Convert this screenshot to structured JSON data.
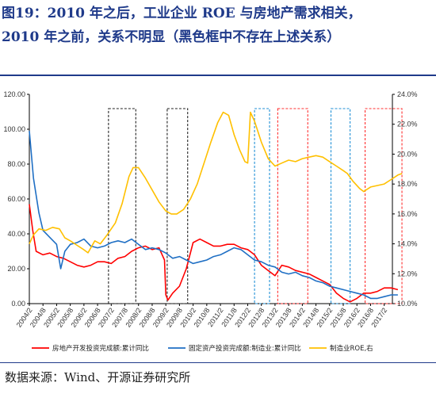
{
  "title": {
    "line1": "图19：2010 年之后，工业企业 ROE 与房地产需求相关，",
    "line2": "2010 年之前，关系不明显（黑色框中不存在上述关系）"
  },
  "source": "数据来源：Wind、开源证券研究所",
  "colors": {
    "title": "#1f3a8a",
    "red": "#ff0000",
    "blue": "#1f6fc4",
    "yellow": "#ffc000"
  },
  "chart_data": {
    "type": "line",
    "x_tick_labels": [
      "2004/2",
      "2004/8",
      "2005/2",
      "2005/8",
      "2006/2",
      "2006/8",
      "2007/2",
      "2007/8",
      "2008/2",
      "2008/8",
      "2009/2",
      "2009/8",
      "2010/2",
      "2010/8",
      "2011/2",
      "2011/8",
      "2012/2",
      "2012/8",
      "2013/2",
      "2013/8",
      "2014/2",
      "2014/8",
      "2015/2",
      "2015/8",
      "2016/2",
      "2016/8",
      "2017/2"
    ],
    "y_left": {
      "min": 0,
      "max": 120,
      "ticks": [
        "0.00",
        "20.00",
        "40.00",
        "60.00",
        "80.00",
        "100.00",
        "120.00"
      ]
    },
    "y_right": {
      "min": 10.0,
      "max": 24.0,
      "ticks": [
        "10.0%",
        "12.0%",
        "14.0%",
        "16.0%",
        "18.0%",
        "20.0%",
        "22.0%",
        "24.0%"
      ]
    },
    "series": [
      {
        "name": "房地产开发投资完成额:累计同比",
        "color": "#ff0000",
        "axis": "left",
        "points": [
          [
            0,
            57
          ],
          [
            0.25,
            42
          ],
          [
            0.5,
            30
          ],
          [
            1,
            28
          ],
          [
            1.5,
            29
          ],
          [
            2,
            27
          ],
          [
            2.5,
            26
          ],
          [
            3,
            24
          ],
          [
            3.5,
            22
          ],
          [
            4,
            21
          ],
          [
            4.5,
            22
          ],
          [
            5,
            24
          ],
          [
            5.5,
            24
          ],
          [
            6,
            23
          ],
          [
            6.5,
            26
          ],
          [
            7,
            27
          ],
          [
            7.5,
            30
          ],
          [
            8,
            32
          ],
          [
            8.5,
            33
          ],
          [
            9,
            31
          ],
          [
            9.5,
            32
          ],
          [
            9.9,
            25
          ],
          [
            10,
            5
          ],
          [
            10.15,
            2
          ],
          [
            10.5,
            6
          ],
          [
            11,
            10
          ],
          [
            11.5,
            20
          ],
          [
            12,
            35
          ],
          [
            12.5,
            37
          ],
          [
            13,
            35
          ],
          [
            13.5,
            33
          ],
          [
            14,
            33
          ],
          [
            14.5,
            34
          ],
          [
            15,
            34
          ],
          [
            15.5,
            32
          ],
          [
            16,
            31
          ],
          [
            16.5,
            28
          ],
          [
            17,
            22
          ],
          [
            17.5,
            19
          ],
          [
            18,
            16
          ],
          [
            18.5,
            22
          ],
          [
            19,
            21
          ],
          [
            19.5,
            19
          ],
          [
            20,
            18
          ],
          [
            20.5,
            17
          ],
          [
            21,
            15
          ],
          [
            21.5,
            13
          ],
          [
            22,
            11
          ],
          [
            22.5,
            6
          ],
          [
            23,
            3
          ],
          [
            23.5,
            1
          ],
          [
            24,
            3
          ],
          [
            24.5,
            6
          ],
          [
            25,
            6
          ],
          [
            25.5,
            7
          ],
          [
            26,
            9
          ],
          [
            26.5,
            9
          ],
          [
            27,
            8
          ]
        ]
      },
      {
        "name": "固定资产投资完成额:制造业:累计同比",
        "color": "#1f6fc4",
        "axis": "left",
        "points": [
          [
            0,
            99
          ],
          [
            0.3,
            72
          ],
          [
            0.7,
            52
          ],
          [
            1,
            42
          ],
          [
            1.5,
            38
          ],
          [
            2,
            34
          ],
          [
            2.3,
            20
          ],
          [
            2.6,
            30
          ],
          [
            3,
            34
          ],
          [
            3.5,
            35
          ],
          [
            4,
            37
          ],
          [
            4.5,
            33
          ],
          [
            5,
            32
          ],
          [
            5.5,
            33
          ],
          [
            6,
            35
          ],
          [
            6.5,
            36
          ],
          [
            7,
            35
          ],
          [
            7.5,
            37
          ],
          [
            8,
            34
          ],
          [
            8.5,
            31
          ],
          [
            9,
            32
          ],
          [
            9.5,
            31
          ],
          [
            10,
            29
          ],
          [
            10.5,
            26
          ],
          [
            11,
            27
          ],
          [
            11.5,
            25
          ],
          [
            12,
            23
          ],
          [
            12.5,
            24
          ],
          [
            13,
            25
          ],
          [
            13.5,
            27
          ],
          [
            14,
            28
          ],
          [
            14.5,
            30
          ],
          [
            15,
            32
          ],
          [
            15.5,
            31
          ],
          [
            16,
            28
          ],
          [
            16.5,
            25
          ],
          [
            17,
            24
          ],
          [
            17.5,
            22
          ],
          [
            18,
            21
          ],
          [
            18.5,
            18
          ],
          [
            19,
            17
          ],
          [
            19.5,
            18
          ],
          [
            20,
            16
          ],
          [
            20.5,
            15
          ],
          [
            21,
            13
          ],
          [
            21.5,
            12
          ],
          [
            22,
            10
          ],
          [
            22.5,
            9
          ],
          [
            23,
            8
          ],
          [
            23.5,
            7
          ],
          [
            24,
            6
          ],
          [
            24.5,
            5
          ],
          [
            25,
            3
          ],
          [
            25.5,
            3
          ],
          [
            26,
            4
          ],
          [
            26.5,
            5
          ],
          [
            27,
            5
          ]
        ]
      },
      {
        "name": "制造业ROE,右",
        "color": "#ffc000",
        "axis": "right",
        "points": [
          [
            0,
            14.0
          ],
          [
            0.3,
            14.6
          ],
          [
            0.7,
            15.0
          ],
          [
            1.2,
            14.9
          ],
          [
            1.7,
            15.1
          ],
          [
            2.2,
            15.0
          ],
          [
            2.6,
            14.4
          ],
          [
            3,
            14.2
          ],
          [
            3.5,
            13.9
          ],
          [
            4,
            13.6
          ],
          [
            4.3,
            13.4
          ],
          [
            4.8,
            14.2
          ],
          [
            5.2,
            14.0
          ],
          [
            5.7,
            14.6
          ],
          [
            6.3,
            15.4
          ],
          [
            6.8,
            16.7
          ],
          [
            7.3,
            18.5
          ],
          [
            7.6,
            19.1
          ],
          [
            8,
            19.1
          ],
          [
            8.5,
            18.4
          ],
          [
            9,
            17.6
          ],
          [
            9.5,
            16.8
          ],
          [
            10,
            16.2
          ],
          [
            10.4,
            16.0
          ],
          [
            10.8,
            16.0
          ],
          [
            11.3,
            16.3
          ],
          [
            11.8,
            17.0
          ],
          [
            12.3,
            18.0
          ],
          [
            12.8,
            19.4
          ],
          [
            13.3,
            20.8
          ],
          [
            13.8,
            22.1
          ],
          [
            14.2,
            22.8
          ],
          [
            14.6,
            22.6
          ],
          [
            15,
            21.3
          ],
          [
            15.4,
            20.3
          ],
          [
            15.8,
            19.5
          ],
          [
            16,
            19.4
          ],
          [
            16.2,
            22.8
          ],
          [
            16.5,
            22.2
          ],
          [
            17,
            20.8
          ],
          [
            17.5,
            19.7
          ],
          [
            18,
            19.2
          ],
          [
            18.5,
            19.4
          ],
          [
            19,
            19.6
          ],
          [
            19.5,
            19.5
          ],
          [
            20,
            19.7
          ],
          [
            20.5,
            19.8
          ],
          [
            21,
            19.9
          ],
          [
            21.5,
            19.8
          ],
          [
            22,
            19.5
          ],
          [
            22.5,
            19.2
          ],
          [
            23,
            18.9
          ],
          [
            23.3,
            18.7
          ],
          [
            23.7,
            18.2
          ],
          [
            24.2,
            17.7
          ],
          [
            24.5,
            17.5
          ],
          [
            25,
            17.8
          ],
          [
            25.5,
            17.9
          ],
          [
            26,
            18.0
          ],
          [
            26.5,
            18.3
          ],
          [
            27,
            18.6
          ],
          [
            27.3,
            18.7
          ]
        ]
      }
    ],
    "boxes": [
      {
        "style": "black",
        "x": [
          5.8,
          7.8
        ]
      },
      {
        "style": "black",
        "x": [
          10.1,
          11.6
        ]
      },
      {
        "style": "blue",
        "x": [
          16.5,
          17.6
        ]
      },
      {
        "style": "red",
        "x": [
          18.2,
          20.4
        ]
      },
      {
        "style": "blue",
        "x": [
          22.1,
          23.5
        ]
      },
      {
        "style": "red",
        "x": [
          24.6,
          27.3
        ]
      }
    ]
  }
}
